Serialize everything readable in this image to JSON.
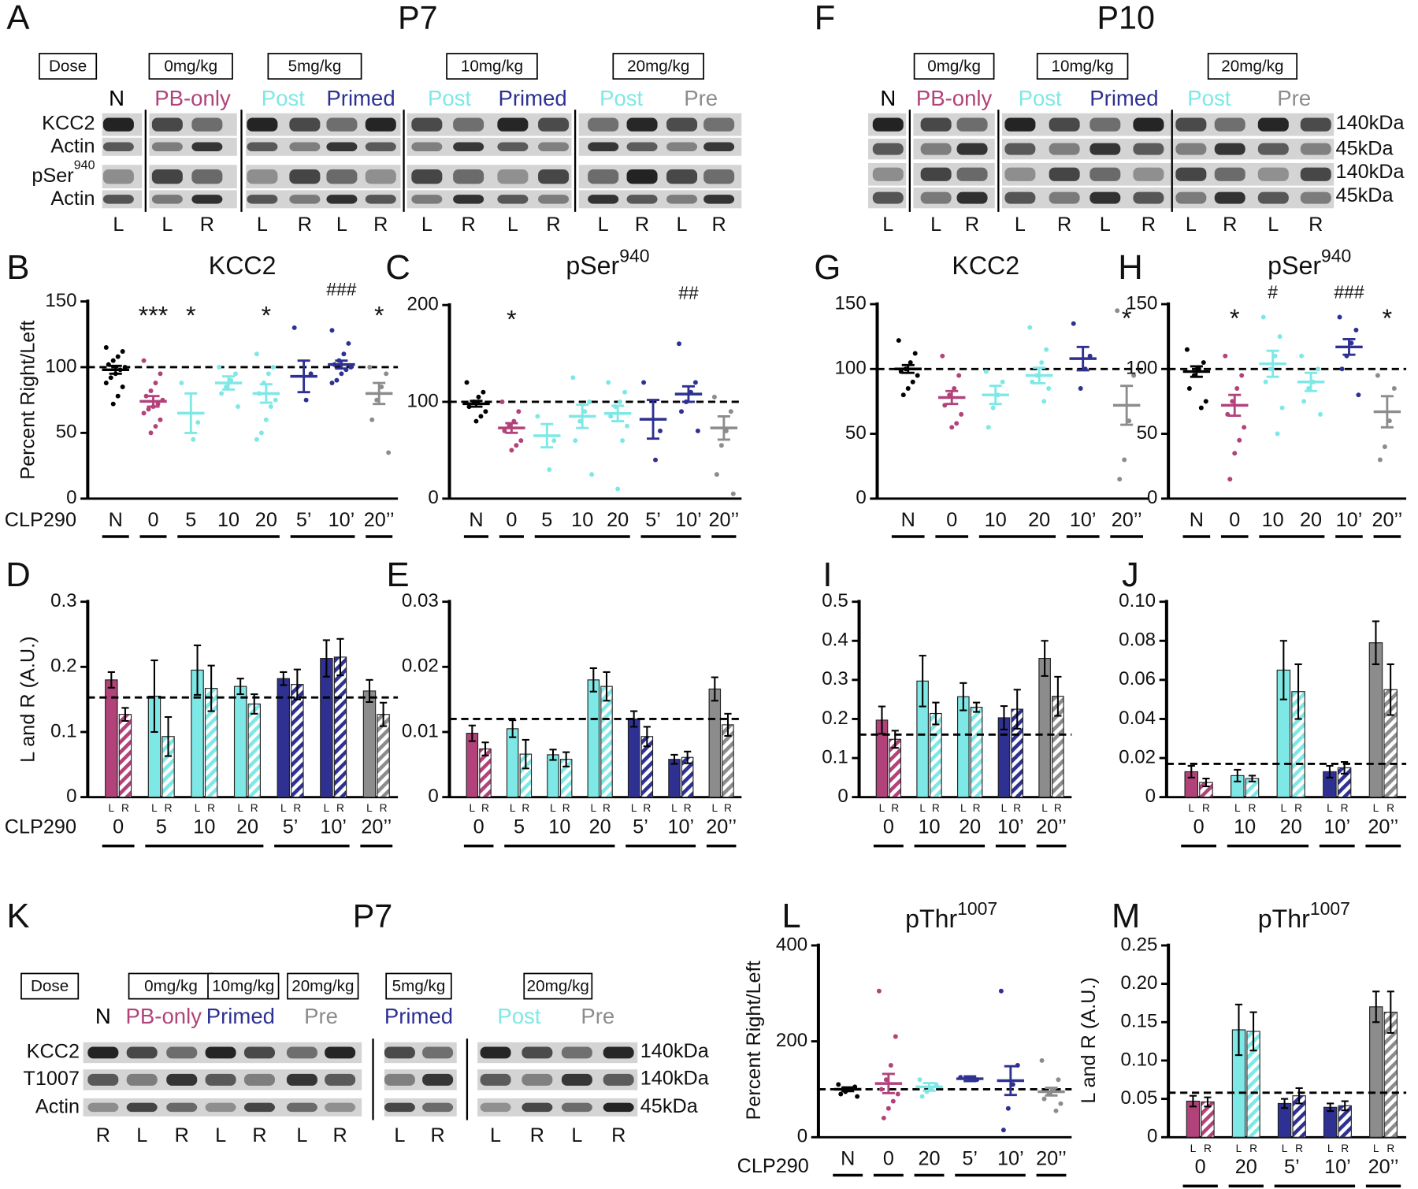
{
  "blots": [
    {
      "letter": "A",
      "title": "P7",
      "doses": [
        "Dose",
        "0mg/kg",
        "5mg/kg",
        "10mg/kg",
        "20mg/kg"
      ],
      "groups": [
        "N",
        "PB-only",
        "Post",
        "Primed",
        "Post",
        "Primed",
        "Post",
        "Pre"
      ],
      "group_colors": [
        "#000000",
        "#b2437a",
        "#7ee8e6",
        "#2e3192",
        "#7ee8e6",
        "#2e3192",
        "#7ee8e6",
        "#8c8c8c"
      ],
      "rows": [
        "KCC2",
        "Actin",
        "pSer",
        "Actin"
      ],
      "row_superscripts": [
        null,
        null,
        "940",
        null
      ],
      "lanes": [
        "L",
        "L",
        "R",
        "L",
        "R",
        "L",
        "R",
        "L",
        "R",
        "L",
        "R",
        "L",
        "R",
        "L",
        "R"
      ]
    },
    {
      "letter": "F",
      "title": "P10",
      "doses": [
        "0mg/kg",
        "10mg/kg",
        "20mg/kg"
      ],
      "groups": [
        "N",
        "PB-only",
        "Post",
        "Primed",
        "Post",
        "Pre"
      ],
      "group_colors": [
        "#000000",
        "#b2437a",
        "#7ee8e6",
        "#2e3192",
        "#7ee8e6",
        "#8c8c8c"
      ],
      "sizes": [
        "140kDa",
        "45kDa",
        "140kDa",
        "45kDa"
      ],
      "lanes": [
        "L",
        "L",
        "R",
        "L",
        "R",
        "L",
        "R",
        "L",
        "R",
        "L",
        "R"
      ]
    },
    {
      "letter": "K",
      "title": "P7",
      "doses": [
        "Dose",
        "0mg/kg",
        "10mg/kg",
        "20mg/kg",
        "5mg/kg",
        "20mg/kg"
      ],
      "groups": [
        "N",
        "PB-only",
        "Primed",
        "Pre",
        "Primed",
        "Post",
        "Pre"
      ],
      "group_colors": [
        "#000000",
        "#b2437a",
        "#2e3192",
        "#8c8c8c",
        "#2e3192",
        "#7ee8e6",
        "#8c8c8c"
      ],
      "rows": [
        "KCC2",
        "T1007",
        "Actin"
      ],
      "sizes": [
        "140kDa",
        "140kDa",
        "45kDa"
      ],
      "lanes": [
        "R",
        "L",
        "R",
        "L",
        "R",
        "L",
        "R",
        "L",
        "R",
        "L",
        "R",
        "L",
        "R"
      ]
    }
  ],
  "chart_data": [
    {
      "type": "dotplot",
      "panel": "B",
      "title": "KCC2",
      "y_label": "Percent Right/Left",
      "x_label": "CLP290",
      "ylim": [
        0,
        150
      ],
      "yticks": [
        0,
        50,
        100,
        150
      ],
      "reference": 100,
      "groups": [
        {
          "name": "N",
          "color": "#000000",
          "mean": 98,
          "sem": 3,
          "points": [
            115,
            112,
            108,
            105,
            102,
            100,
            98,
            95,
            92,
            88,
            85,
            78,
            72
          ]
        },
        {
          "name": "0",
          "color": "#b2437a",
          "mean": 74,
          "sem": 4,
          "sig": "***",
          "points": [
            105,
            95,
            88,
            82,
            78,
            75,
            72,
            70,
            68,
            65,
            60,
            55,
            50
          ]
        },
        {
          "name": "5",
          "color": "#7ee8e6",
          "mean": 65,
          "sem": 15,
          "sig": "*",
          "points": [
            88,
            58,
            45
          ]
        },
        {
          "name": "10",
          "color": "#7ee8e6",
          "mean": 88,
          "sem": 5,
          "points": [
            100,
            95,
            90,
            85,
            80,
            70
          ]
        },
        {
          "name": "20",
          "color": "#7ee8e6",
          "mean": 80,
          "sem": 7,
          "sig": "*",
          "points": [
            110,
            100,
            95,
            88,
            80,
            75,
            70,
            60,
            50,
            45
          ]
        },
        {
          "name": "5’",
          "color": "#2e3192",
          "mean": 93,
          "sem": 12,
          "points": [
            130,
            95,
            75
          ]
        },
        {
          "name": "10’",
          "color": "#2e3192",
          "mean": 102,
          "sem": 3,
          "sig": "###",
          "points": [
            128,
            118,
            110,
            105,
            102,
            100,
            98,
            95,
            90,
            88
          ]
        },
        {
          "name": "20’’",
          "color": "#8c8c8c",
          "mean": 80,
          "sem": 8,
          "sig": "*",
          "points": [
            100,
            95,
            85,
            75,
            60,
            35
          ]
        }
      ]
    },
    {
      "type": "dotplot",
      "panel": "C",
      "title": "pSer",
      "title_superscript": "940",
      "ylim": [
        0,
        200
      ],
      "yticks": [
        0,
        100,
        200
      ],
      "reference": 100,
      "groups": [
        {
          "name": "N",
          "color": "#000000",
          "mean": 98,
          "sem": 3,
          "points": [
            120,
            110,
            105,
            100,
            95,
            90,
            85,
            80
          ]
        },
        {
          "name": "0",
          "color": "#b2437a",
          "mean": 73,
          "sem": 5,
          "sig": "*",
          "points": [
            100,
            90,
            80,
            75,
            70,
            60,
            55,
            50
          ]
        },
        {
          "name": "5",
          "color": "#7ee8e6",
          "mean": 65,
          "sem": 12,
          "points": [
            85,
            60,
            30
          ]
        },
        {
          "name": "10",
          "color": "#7ee8e6",
          "mean": 85,
          "sem": 12,
          "points": [
            125,
            100,
            90,
            80,
            60,
            25
          ]
        },
        {
          "name": "20",
          "color": "#7ee8e6",
          "mean": 88,
          "sem": 8,
          "points": [
            120,
            110,
            100,
            95,
            85,
            75,
            60,
            10
          ]
        },
        {
          "name": "5’",
          "color": "#2e3192",
          "mean": 82,
          "sem": 20,
          "points": [
            120,
            70,
            40
          ]
        },
        {
          "name": "10’",
          "color": "#2e3192",
          "mean": 108,
          "sem": 8,
          "sig": "##",
          "points": [
            160,
            120,
            110,
            100,
            90,
            70
          ]
        },
        {
          "name": "20’’",
          "color": "#8c8c8c",
          "mean": 73,
          "sem": 12,
          "points": [
            105,
            90,
            70,
            55,
            25,
            5
          ]
        }
      ]
    },
    {
      "type": "dotplot",
      "panel": "G",
      "title": "KCC2",
      "ylim": [
        0,
        150
      ],
      "yticks": [
        0,
        50,
        100,
        150
      ],
      "reference": 100,
      "groups": [
        {
          "name": "N",
          "color": "#000000",
          "mean": 100,
          "sem": 3,
          "points": [
            122,
            112,
            105,
            100,
            98,
            95,
            90,
            85,
            80
          ]
        },
        {
          "name": "0",
          "color": "#b2437a",
          "mean": 78,
          "sem": 5,
          "points": [
            110,
            95,
            85,
            80,
            72,
            65,
            58,
            55
          ]
        },
        {
          "name": "10",
          "color": "#7ee8e6",
          "mean": 80,
          "sem": 7,
          "points": [
            98,
            90,
            80,
            70,
            55
          ]
        },
        {
          "name": "20",
          "color": "#7ee8e6",
          "mean": 95,
          "sem": 6,
          "points": [
            132,
            115,
            105,
            95,
            90,
            85,
            75
          ]
        },
        {
          "name": "10’",
          "color": "#2e3192",
          "mean": 108,
          "sem": 9,
          "points": [
            135,
            110,
            100,
            85
          ]
        },
        {
          "name": "20’’",
          "color": "#8c8c8c",
          "mean": 72,
          "sem": 15,
          "sig": "*",
          "points": [
            145,
            95,
            60,
            30,
            15
          ]
        }
      ]
    },
    {
      "type": "dotplot",
      "panel": "H",
      "title": "pSer",
      "title_superscript": "940",
      "ylim": [
        0,
        150
      ],
      "yticks": [
        0,
        50,
        100,
        150
      ],
      "reference": 100,
      "groups": [
        {
          "name": "N",
          "color": "#000000",
          "mean": 98,
          "sem": 4,
          "points": [
            115,
            105,
            100,
            95,
            85,
            75,
            70
          ]
        },
        {
          "name": "0",
          "color": "#b2437a",
          "mean": 72,
          "sem": 8,
          "sig": "*",
          "points": [
            110,
            95,
            85,
            75,
            65,
            55,
            45,
            35,
            15
          ]
        },
        {
          "name": "10",
          "color": "#7ee8e6",
          "mean": 104,
          "sem": 10,
          "sig": "#",
          "points": [
            140,
            125,
            110,
            100,
            90,
            70,
            50
          ]
        },
        {
          "name": "20",
          "color": "#7ee8e6",
          "mean": 90,
          "sem": 7,
          "points": [
            110,
            100,
            90,
            85,
            75,
            65
          ]
        },
        {
          "name": "10’",
          "color": "#2e3192",
          "mean": 117,
          "sem": 6,
          "sig": "###",
          "points": [
            140,
            130,
            120,
            110,
            100,
            80
          ]
        },
        {
          "name": "20’’",
          "color": "#8c8c8c",
          "mean": 67,
          "sem": 12,
          "sig": "*",
          "points": [
            95,
            85,
            60,
            40,
            30
          ]
        }
      ]
    },
    {
      "type": "bar",
      "panel": "D",
      "y_label": "L and R (A.U.)",
      "x_label": "CLP290",
      "ylim": [
        0,
        0.3
      ],
      "yticks": [
        0,
        0.1,
        0.2,
        0.3
      ],
      "reference": 0.153,
      "categories": [
        "0",
        "5",
        "10",
        "20",
        "5’",
        "10’",
        "20’’"
      ],
      "colors": [
        "#b2437a",
        "#7ee8e6",
        "#7ee8e6",
        "#7ee8e6",
        "#2e3192",
        "#2e3192",
        "#8c8c8c"
      ],
      "series": [
        {
          "name": "L",
          "values": [
            0.18,
            0.155,
            0.195,
            0.17,
            0.182,
            0.213,
            0.163
          ],
          "errors": [
            0.012,
            0.055,
            0.038,
            0.012,
            0.01,
            0.028,
            0.017
          ]
        },
        {
          "name": "R",
          "hatch": true,
          "values": [
            0.127,
            0.093,
            0.167,
            0.143,
            0.173,
            0.215,
            0.127
          ],
          "errors": [
            0.01,
            0.03,
            0.035,
            0.015,
            0.023,
            0.028,
            0.018
          ]
        }
      ]
    },
    {
      "type": "bar",
      "panel": "E",
      "ylim": [
        0,
        0.03
      ],
      "yticks": [
        0,
        0.01,
        0.02,
        0.03
      ],
      "reference": 0.012,
      "categories": [
        "0",
        "5",
        "10",
        "20",
        "5’",
        "10’",
        "20’’"
      ],
      "colors": [
        "#b2437a",
        "#7ee8e6",
        "#7ee8e6",
        "#7ee8e6",
        "#2e3192",
        "#2e3192",
        "#8c8c8c"
      ],
      "series": [
        {
          "name": "L",
          "values": [
            0.0098,
            0.0105,
            0.0065,
            0.018,
            0.012,
            0.0058,
            0.0166
          ],
          "errors": [
            0.0012,
            0.0013,
            0.0008,
            0.0018,
            0.0012,
            0.0007,
            0.0018
          ]
        },
        {
          "name": "R",
          "hatch": true,
          "values": [
            0.0074,
            0.0066,
            0.0058,
            0.017,
            0.0093,
            0.0061,
            0.0111
          ],
          "errors": [
            0.001,
            0.0022,
            0.0011,
            0.0022,
            0.0015,
            0.0009,
            0.0017
          ]
        }
      ]
    },
    {
      "type": "bar",
      "panel": "I",
      "ylim": [
        0,
        0.5
      ],
      "yticks": [
        0,
        0.1,
        0.2,
        0.3,
        0.4,
        0.5
      ],
      "reference": 0.16,
      "categories": [
        "0",
        "10",
        "20",
        "10’",
        "20’’"
      ],
      "colors": [
        "#b2437a",
        "#7ee8e6",
        "#7ee8e6",
        "#2e3192",
        "#8c8c8c"
      ],
      "series": [
        {
          "name": "L",
          "values": [
            0.197,
            0.297,
            0.257,
            0.203,
            0.355
          ],
          "errors": [
            0.035,
            0.065,
            0.035,
            0.03,
            0.045
          ]
        },
        {
          "name": "R",
          "hatch": true,
          "values": [
            0.148,
            0.214,
            0.23,
            0.225,
            0.258
          ],
          "errors": [
            0.022,
            0.028,
            0.012,
            0.05,
            0.05
          ]
        }
      ]
    },
    {
      "type": "bar",
      "panel": "J",
      "ylim": [
        0,
        0.1
      ],
      "yticks": [
        0,
        0.02,
        0.04,
        0.06,
        0.08,
        {
          "value": 0.1,
          "label": "0.10"
        }
      ],
      "reference": 0.017,
      "categories": [
        "0",
        "10",
        "20",
        "10’",
        "20’’"
      ],
      "colors": [
        "#b2437a",
        "#7ee8e6",
        "#7ee8e6",
        "#2e3192",
        "#8c8c8c"
      ],
      "series": [
        {
          "name": "L",
          "values": [
            0.013,
            0.011,
            0.065,
            0.013,
            0.079
          ],
          "errors": [
            0.003,
            0.003,
            0.015,
            0.003,
            0.011
          ]
        },
        {
          "name": "R",
          "hatch": true,
          "values": [
            0.0075,
            0.0095,
            0.054,
            0.015,
            0.055
          ],
          "errors": [
            0.002,
            0.0015,
            0.014,
            0.003,
            0.013
          ]
        }
      ]
    },
    {
      "type": "dotplot",
      "panel": "L",
      "title": "pThr",
      "title_superscript": "1007",
      "y_label": "Percent Right/Left",
      "x_label": "CLP290",
      "ylim": [
        0,
        400
      ],
      "yticks": [
        0,
        200,
        400
      ],
      "reference": 100,
      "groups": [
        {
          "name": "N",
          "color": "#000000",
          "mean": 100,
          "sem": 4,
          "points": [
            110,
            105,
            100,
            95,
            90,
            85
          ]
        },
        {
          "name": "0",
          "color": "#b2437a",
          "mean": 112,
          "sem": 20,
          "points": [
            305,
            210,
            150,
            120,
            100,
            90,
            75,
            60,
            40
          ]
        },
        {
          "name": "20",
          "color": "#7ee8e6",
          "mean": 105,
          "sem": 8,
          "points": [
            120,
            110,
            100,
            95,
            85
          ]
        },
        {
          "name": "5’",
          "color": "#2e3192",
          "mean": 122,
          "sem": 5,
          "points": [
            125,
            120
          ]
        },
        {
          "name": "10’",
          "color": "#2e3192",
          "mean": 118,
          "sem": 30,
          "points": [
            305,
            150,
            110,
            60,
            15
          ]
        },
        {
          "name": "20’’",
          "color": "#8c8c8c",
          "mean": 95,
          "sem": 8,
          "points": [
            160,
            120,
            100,
            90,
            80,
            70,
            55
          ]
        }
      ]
    },
    {
      "type": "bar",
      "panel": "M",
      "title": "pThr",
      "title_superscript": "1007",
      "y_label": "L and R (A.U.)",
      "ylim": [
        0,
        0.25
      ],
      "yticks": [
        0,
        0.05,
        {
          "value": 0.1,
          "label": "0.10"
        },
        0.15,
        {
          "value": 0.2,
          "label": "0.20"
        },
        0.25
      ],
      "reference": 0.058,
      "categories": [
        "0",
        "20",
        "5’",
        "10’",
        "20’’"
      ],
      "colors": [
        "#b2437a",
        "#7ee8e6",
        "#2e3192",
        "#2e3192",
        "#8c8c8c"
      ],
      "series": [
        {
          "name": "L",
          "values": [
            0.047,
            0.14,
            0.044,
            0.039,
            0.17
          ],
          "errors": [
            0.007,
            0.033,
            0.006,
            0.005,
            0.02
          ]
        },
        {
          "name": "R",
          "hatch": true,
          "values": [
            0.046,
            0.138,
            0.054,
            0.041,
            0.163
          ],
          "errors": [
            0.006,
            0.025,
            0.01,
            0.006,
            0.027
          ]
        }
      ]
    }
  ]
}
